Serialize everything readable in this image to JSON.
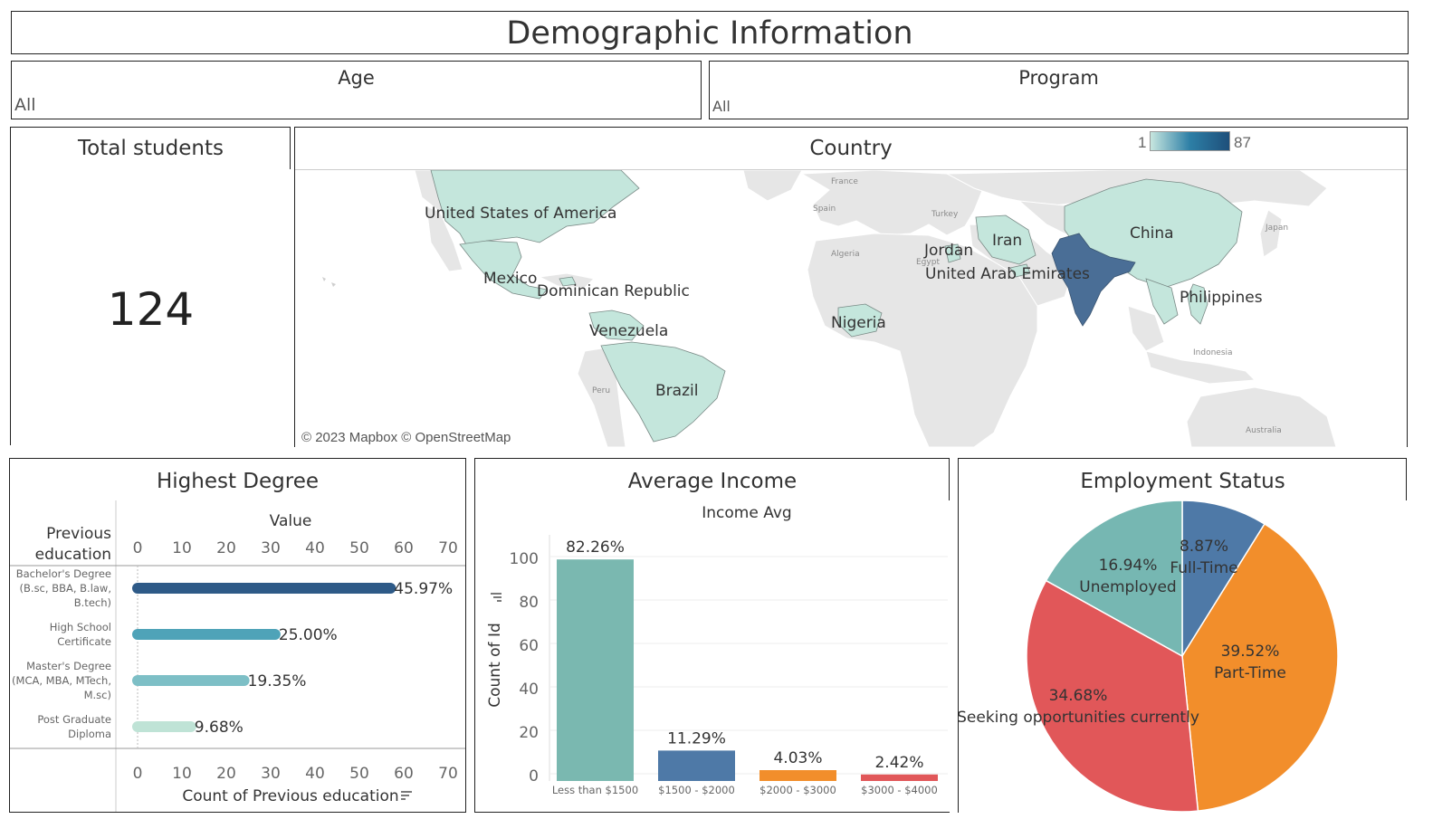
{
  "dashboard": {
    "title": "Demographic Information",
    "filters": [
      {
        "label": "Age",
        "value": "All"
      },
      {
        "label": "Program",
        "value": "All"
      }
    ],
    "total_students": {
      "title": "Total students",
      "value": "124"
    },
    "country_map": {
      "title": "Country",
      "legend_min": "1",
      "legend_max": "87",
      "legend_colors": [
        "#c7e6df",
        "#2d7fa6",
        "#1e4f7a"
      ],
      "attribution": "© 2023 Mapbox © OpenStreetMap",
      "highlight_color": "#4a6e96",
      "light_color": "#c4e6dc",
      "labels": [
        "United States of America",
        "Mexico",
        "Dominican Republic",
        "Venezuela",
        "Brazil",
        "Nigeria",
        "Jordan",
        "Iran",
        "United Arab Emirates",
        "China",
        "Philippines"
      ],
      "basemap_labels": [
        "France",
        "Spain",
        "Turkey",
        "Algeria",
        "Egypt",
        "Japan",
        "Peru",
        "Indonesia",
        "Australia"
      ]
    }
  },
  "chart_data": [
    {
      "type": "bar",
      "orientation": "horizontal",
      "title": "Highest Degree",
      "row_header": [
        "Previous",
        "education"
      ],
      "axis_title_top": "Value",
      "xlabel": "Count of Previous education",
      "categories": [
        [
          "Bachelor's Degree",
          "(B.sc, BBA, B.law,",
          "B.tech)"
        ],
        [
          "High School",
          "Certificate"
        ],
        [
          "Master's Degree",
          "(MCA, MBA, MTech,",
          "M.sc)"
        ],
        [
          "Post Graduate",
          "Diploma"
        ]
      ],
      "values": [
        57,
        31,
        24,
        12
      ],
      "labels": [
        "45.97%",
        "25.00%",
        "19.35%",
        "9.68%"
      ],
      "colors": [
        "#2e5a87",
        "#4fa3b8",
        "#7dbfc6",
        "#bfe3d6"
      ],
      "ticks": [
        0,
        10,
        20,
        30,
        40,
        50,
        60,
        70
      ],
      "xlim": [
        0,
        70
      ]
    },
    {
      "type": "bar",
      "title": "Average Income",
      "subtitle": "Income Avg",
      "ylabel": "Count of Id",
      "categories": [
        "Less than $1500",
        "$1500 - $2000",
        "$2000 - $3000",
        "$3000 - $4000"
      ],
      "values": [
        102,
        14,
        5,
        3
      ],
      "labels": [
        "82.26%",
        "11.29%",
        "4.03%",
        "2.42%"
      ],
      "colors": [
        "#7ab8b0",
        "#4e79a7",
        "#f28e2b",
        "#e15759"
      ],
      "ticks": [
        0,
        20,
        40,
        60,
        80,
        100
      ],
      "ylim": [
        0,
        110
      ]
    },
    {
      "type": "pie",
      "title": "Employment Status",
      "slices": [
        {
          "label": "Full-Time",
          "pct": "8.87%",
          "value": 8.87,
          "color": "#4e79a7"
        },
        {
          "label": "Part-Time",
          "pct": "39.52%",
          "value": 39.52,
          "color": "#f28e2b"
        },
        {
          "label": "Seeking opportunities currently",
          "pct": "34.68%",
          "value": 34.68,
          "color": "#e15759"
        },
        {
          "label": "Unemployed",
          "pct": "16.94%",
          "value": 16.94,
          "color": "#76b7b2"
        }
      ]
    }
  ]
}
